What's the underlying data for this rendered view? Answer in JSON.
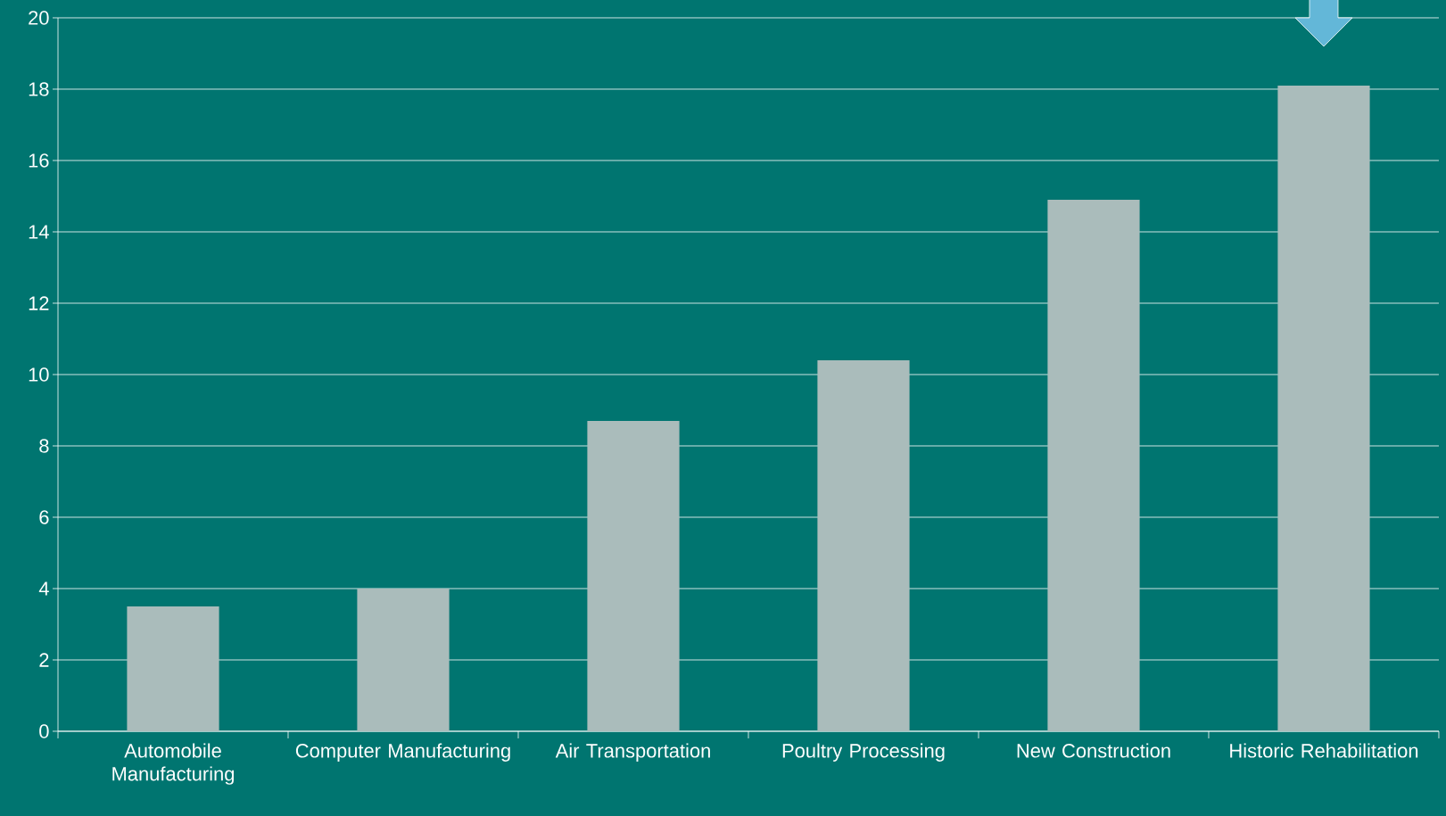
{
  "chart_data": {
    "type": "bar",
    "categories": [
      "Automobile Manufacturing",
      "Computer Manufacturing",
      "Air Transportation",
      "Poultry Processing",
      "New Construction",
      "Historic Rehabilitation"
    ],
    "values": [
      3.5,
      4.0,
      8.7,
      10.4,
      14.9,
      18.1
    ],
    "color": "#aabcbb",
    "ylim": [
      0,
      20
    ],
    "yticks": [
      0,
      2,
      4,
      6,
      8,
      10,
      12,
      14,
      16,
      18,
      20
    ],
    "grid": "y"
  }
}
